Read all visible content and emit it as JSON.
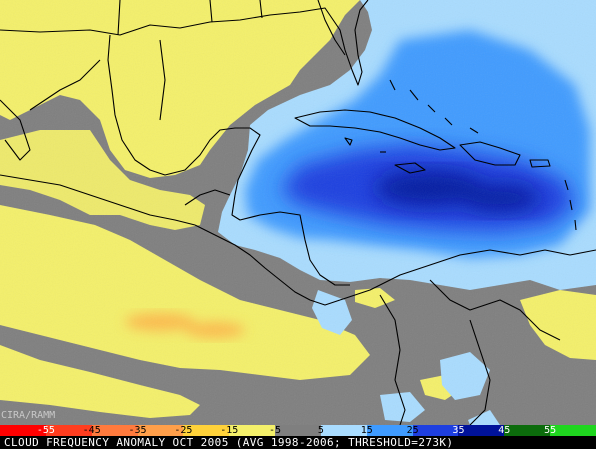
{
  "credit": "CIRA/RAMM",
  "caption": "CLOUD FREQUENCY ANOMALY OCT 2005 (AVG 1998-2006; THRESHOLD=273K)",
  "colorbar": {
    "labels": [
      "-55",
      "-45",
      "-35",
      "-25",
      "-15",
      "-5",
      "5",
      "15",
      "25",
      "35",
      "45",
      "55"
    ],
    "colors": [
      "#ff0000",
      "#ff3d1f",
      "#ff7a3d",
      "#ff9f4a",
      "#ffd23a",
      "#f4f06a",
      "#7f7f7f",
      "#a9dcff",
      "#3f9bff",
      "#1e3fe0",
      "#00129a",
      "#0c6c0c",
      "#1fd61f"
    ],
    "label_colors": [
      "#ffffff",
      "#000000",
      "#000000",
      "#000000",
      "#000000",
      "#000000",
      "#000000",
      "#000000",
      "#000000",
      "#ffffff",
      "#ffffff",
      "#ffffff"
    ]
  },
  "colors": {
    "land_no_anomaly": "#7f7f7f",
    "negative_anomaly": "#f4f06a",
    "strong_negative": "#ffb347",
    "positive_light": "#a9dcff",
    "positive_mid": "#3f9bff",
    "positive_strong": "#1e3fe0",
    "positive_max": "#00129a",
    "coastline": "#000000"
  }
}
